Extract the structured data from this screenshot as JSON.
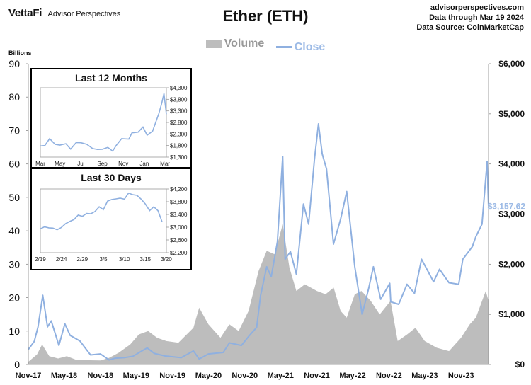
{
  "header": {
    "brand": "VettaFi",
    "brand_sub": "Advisor Perspectives",
    "title": "Ether (ETH)",
    "site": "advisorperspectives.com",
    "data_through": "Data through Mar 19 2024",
    "data_source": "Data Source: CoinMarketCap"
  },
  "legend": {
    "volume": "Volume",
    "close": "Close"
  },
  "colors": {
    "volume": "#bdbdbd",
    "close": "#8fb0e0",
    "last_label": "#9dbbe6"
  },
  "units_label": "Billions",
  "last_value_label": "$3,157.62",
  "chart_data": [
    {
      "type": "area+line",
      "x_tick_labels": [
        "Nov-17",
        "May-18",
        "Nov-18",
        "May-19",
        "Nov-19",
        "May-20",
        "Nov-20",
        "May-21",
        "Nov-21",
        "May-22",
        "Nov-22",
        "May-23",
        "Nov-23"
      ],
      "x_range": [
        "2017-11-01",
        "2024-03-19"
      ],
      "y_left": {
        "label": "Billions",
        "range": [
          0,
          90
        ],
        "ticks": [
          "0",
          "10",
          "20",
          "30",
          "40",
          "50",
          "60",
          "70",
          "80",
          "90"
        ]
      },
      "y_right": {
        "range": [
          0,
          6000
        ],
        "ticks": [
          "$0",
          "$1,000",
          "$2,000",
          "$3,000",
          "$4,000",
          "$5,000",
          "$6,000"
        ]
      },
      "grid": false,
      "series": [
        {
          "name": "Volume",
          "axis": "left",
          "points": [
            [
              "2017-11-01",
              0.8
            ],
            [
              "2017-12-15",
              3
            ],
            [
              "2018-01-10",
              6
            ],
            [
              "2018-02-15",
              2.5
            ],
            [
              "2018-04-01",
              1.8
            ],
            [
              "2018-05-15",
              2.5
            ],
            [
              "2018-07-01",
              1.4
            ],
            [
              "2018-09-01",
              1.3
            ],
            [
              "2018-11-01",
              1.2
            ],
            [
              "2018-12-15",
              2
            ],
            [
              "2019-02-01",
              3.5
            ],
            [
              "2019-04-01",
              6
            ],
            [
              "2019-05-15",
              9
            ],
            [
              "2019-07-01",
              10
            ],
            [
              "2019-08-15",
              8
            ],
            [
              "2019-10-01",
              7
            ],
            [
              "2019-12-01",
              6.5
            ],
            [
              "2020-02-15",
              11
            ],
            [
              "2020-03-15",
              17
            ],
            [
              "2020-05-01",
              12
            ],
            [
              "2020-07-01",
              8
            ],
            [
              "2020-08-15",
              12
            ],
            [
              "2020-10-01",
              10
            ],
            [
              "2020-11-20",
              16
            ],
            [
              "2021-01-10",
              28
            ],
            [
              "2021-02-20",
              34
            ],
            [
              "2021-04-01",
              33
            ],
            [
              "2021-05-12",
              42
            ],
            [
              "2021-06-15",
              29
            ],
            [
              "2021-07-20",
              22
            ],
            [
              "2021-09-01",
              24
            ],
            [
              "2021-11-01",
              22
            ],
            [
              "2021-12-15",
              21
            ],
            [
              "2022-01-25",
              23
            ],
            [
              "2022-03-01",
              16
            ],
            [
              "2022-04-01",
              14
            ],
            [
              "2022-05-12",
              21
            ],
            [
              "2022-06-15",
              22
            ],
            [
              "2022-08-01",
              19
            ],
            [
              "2022-09-15",
              15
            ],
            [
              "2022-11-09",
              19
            ],
            [
              "2022-12-15",
              7
            ],
            [
              "2023-02-01",
              9
            ],
            [
              "2023-03-15",
              11
            ],
            [
              "2023-05-01",
              7
            ],
            [
              "2023-07-01",
              5
            ],
            [
              "2023-09-01",
              4
            ],
            [
              "2023-11-01",
              8
            ],
            [
              "2023-12-15",
              12
            ],
            [
              "2024-01-15",
              14
            ],
            [
              "2024-03-05",
              22
            ],
            [
              "2024-03-19",
              19
            ]
          ]
        },
        {
          "name": "Close",
          "axis": "right",
          "points": [
            [
              "2017-11-01",
              300
            ],
            [
              "2017-12-01",
              460
            ],
            [
              "2017-12-20",
              750
            ],
            [
              "2018-01-13",
              1380
            ],
            [
              "2018-02-06",
              750
            ],
            [
              "2018-02-25",
              870
            ],
            [
              "2018-04-05",
              380
            ],
            [
              "2018-05-05",
              810
            ],
            [
              "2018-06-01",
              580
            ],
            [
              "2018-07-20",
              470
            ],
            [
              "2018-09-12",
              190
            ],
            [
              "2018-11-01",
              210
            ],
            [
              "2018-12-15",
              90
            ],
            [
              "2019-01-15",
              125
            ],
            [
              "2019-03-01",
              135
            ],
            [
              "2019-04-15",
              165
            ],
            [
              "2019-05-30",
              270
            ],
            [
              "2019-06-26",
              330
            ],
            [
              "2019-08-01",
              220
            ],
            [
              "2019-09-25",
              170
            ],
            [
              "2019-12-15",
              135
            ],
            [
              "2020-02-15",
              270
            ],
            [
              "2020-03-15",
              110
            ],
            [
              "2020-05-01",
              210
            ],
            [
              "2020-07-15",
              240
            ],
            [
              "2020-08-15",
              430
            ],
            [
              "2020-10-15",
              380
            ],
            [
              "2020-11-25",
              580
            ],
            [
              "2020-12-31",
              740
            ],
            [
              "2021-01-20",
              1380
            ],
            [
              "2021-02-20",
              1950
            ],
            [
              "2021-03-15",
              1750
            ],
            [
              "2021-04-15",
              2450
            ],
            [
              "2021-05-12",
              4150
            ],
            [
              "2021-05-24",
              2100
            ],
            [
              "2021-06-20",
              2250
            ],
            [
              "2021-07-20",
              1800
            ],
            [
              "2021-08-25",
              3200
            ],
            [
              "2021-09-20",
              2800
            ],
            [
              "2021-10-20",
              4100
            ],
            [
              "2021-11-09",
              4800
            ],
            [
              "2021-11-28",
              4200
            ],
            [
              "2021-12-20",
              3900
            ],
            [
              "2022-01-24",
              2400
            ],
            [
              "2022-03-01",
              2900
            ],
            [
              "2022-04-01",
              3450
            ],
            [
              "2022-05-12",
              1950
            ],
            [
              "2022-06-18",
              1000
            ],
            [
              "2022-07-20",
              1500
            ],
            [
              "2022-08-14",
              1950
            ],
            [
              "2022-09-20",
              1300
            ],
            [
              "2022-11-05",
              1620
            ],
            [
              "2022-11-10",
              1250
            ],
            [
              "2022-12-20",
              1200
            ],
            [
              "2023-01-31",
              1600
            ],
            [
              "2023-03-10",
              1420
            ],
            [
              "2023-04-15",
              2100
            ],
            [
              "2023-06-15",
              1650
            ],
            [
              "2023-07-15",
              1900
            ],
            [
              "2023-09-01",
              1630
            ],
            [
              "2023-10-20",
              1600
            ],
            [
              "2023-11-10",
              2100
            ],
            [
              "2023-12-28",
              2350
            ],
            [
              "2024-01-15",
              2550
            ],
            [
              "2024-02-15",
              2800
            ],
            [
              "2024-03-12",
              4050
            ],
            [
              "2024-03-19",
              3157.62
            ]
          ]
        }
      ]
    },
    {
      "type": "line",
      "title": "Last 12 Months",
      "x_tick_labels": [
        "Mar",
        "May",
        "Jul",
        "Sep",
        "Nov",
        "Jan",
        "Mar"
      ],
      "x_range": [
        "2023-03-19",
        "2024-03-19"
      ],
      "y_range": [
        1300,
        4300
      ],
      "y_ticks": [
        "$4,300",
        "$3,800",
        "$3,300",
        "$2,800",
        "$2,300",
        "$1,800",
        "$1,300"
      ],
      "series": [
        {
          "points": [
            [
              "2023-03-19",
              1780
            ],
            [
              "2023-04-01",
              1800
            ],
            [
              "2023-04-15",
              2100
            ],
            [
              "2023-05-01",
              1850
            ],
            [
              "2023-05-15",
              1820
            ],
            [
              "2023-06-01",
              1880
            ],
            [
              "2023-06-15",
              1650
            ],
            [
              "2023-07-01",
              1930
            ],
            [
              "2023-07-15",
              1920
            ],
            [
              "2023-08-01",
              1850
            ],
            [
              "2023-08-18",
              1670
            ],
            [
              "2023-09-01",
              1630
            ],
            [
              "2023-09-15",
              1640
            ],
            [
              "2023-10-01",
              1720
            ],
            [
              "2023-10-15",
              1560
            ],
            [
              "2023-10-25",
              1800
            ],
            [
              "2023-11-10",
              2100
            ],
            [
              "2023-12-01",
              2080
            ],
            [
              "2023-12-10",
              2350
            ],
            [
              "2023-12-28",
              2380
            ],
            [
              "2024-01-11",
              2600
            ],
            [
              "2024-01-23",
              2250
            ],
            [
              "2024-02-08",
              2420
            ],
            [
              "2024-02-26",
              3180
            ],
            [
              "2024-03-05",
              3600
            ],
            [
              "2024-03-12",
              4050
            ],
            [
              "2024-03-19",
              3157.62
            ]
          ]
        }
      ]
    },
    {
      "type": "line",
      "title": "Last 30 Days",
      "x_tick_labels": [
        "2/19",
        "2/24",
        "2/29",
        "3/5",
        "3/10",
        "3/15",
        "3/20"
      ],
      "x_range": [
        "2024-02-19",
        "2024-03-20"
      ],
      "y_range": [
        2200,
        4200
      ],
      "y_ticks": [
        "$4,200",
        "$3,800",
        "$3,400",
        "$3,000",
        "$2,600",
        "$2,200"
      ],
      "series": [
        {
          "points": [
            [
              "2024-02-19",
              2950
            ],
            [
              "2024-02-20",
              3010
            ],
            [
              "2024-02-21",
              2980
            ],
            [
              "2024-02-22",
              2970
            ],
            [
              "2024-02-23",
              2920
            ],
            [
              "2024-02-24",
              2990
            ],
            [
              "2024-02-25",
              3110
            ],
            [
              "2024-02-26",
              3180
            ],
            [
              "2024-02-27",
              3240
            ],
            [
              "2024-02-28",
              3380
            ],
            [
              "2024-02-29",
              3340
            ],
            [
              "2024-03-01",
              3430
            ],
            [
              "2024-03-02",
              3420
            ],
            [
              "2024-03-03",
              3490
            ],
            [
              "2024-03-04",
              3640
            ],
            [
              "2024-03-05",
              3550
            ],
            [
              "2024-03-06",
              3820
            ],
            [
              "2024-03-07",
              3870
            ],
            [
              "2024-03-08",
              3890
            ],
            [
              "2024-03-09",
              3910
            ],
            [
              "2024-03-10",
              3880
            ],
            [
              "2024-03-11",
              4070
            ],
            [
              "2024-03-12",
              4020
            ],
            [
              "2024-03-13",
              4000
            ],
            [
              "2024-03-14",
              3880
            ],
            [
              "2024-03-15",
              3730
            ],
            [
              "2024-03-16",
              3520
            ],
            [
              "2024-03-17",
              3640
            ],
            [
              "2024-03-18",
              3520
            ],
            [
              "2024-03-19",
              3157.62
            ]
          ]
        }
      ]
    }
  ]
}
